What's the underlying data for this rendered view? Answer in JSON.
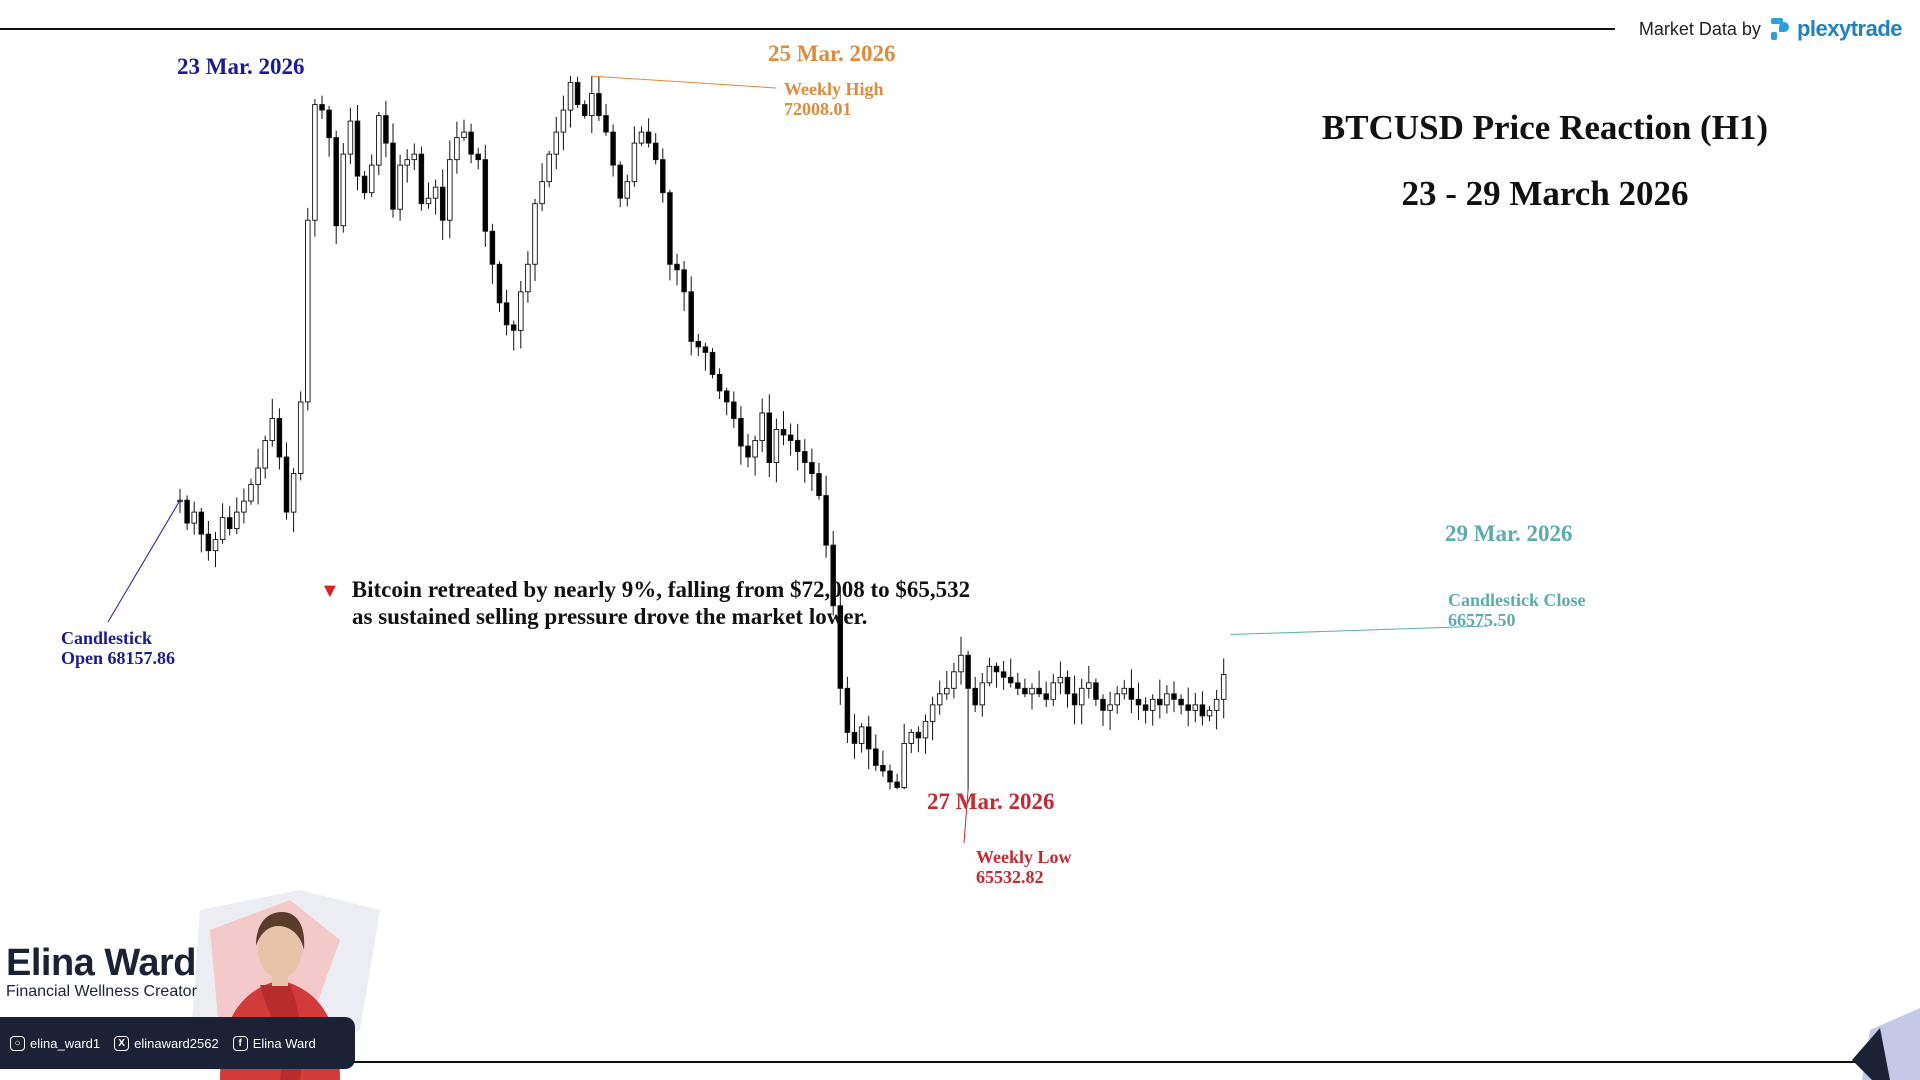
{
  "brand": {
    "prefix": "Market Data by",
    "name": "plexytrade",
    "logo_icon": "plexytrade-logo-icon",
    "color": "#1f82c4"
  },
  "title": {
    "line1": "BTCUSD Price Reaction (H1)",
    "line2": "23 - 29 March 2026"
  },
  "note": {
    "icon": "down-triangle-icon",
    "color": "#e02020",
    "line1": "Bitcoin retreated by nearly 9%, falling from $72,008 to $65,532",
    "line2": "as sustained selling pressure drove the market lower."
  },
  "annotations": {
    "open_date": "23 Mar. 2026",
    "open_label": "Candlestick",
    "open_value": "Open 68157.86",
    "high_date": "25 Mar. 2026",
    "high_label": "Weekly High",
    "high_value": "72008.01",
    "low_date": "27 Mar. 2026",
    "low_label": "Weekly Low",
    "low_value": "65532.82",
    "close_date": "29 Mar. 2026",
    "close_label": "Candlestick Close",
    "close_value": "66575.50"
  },
  "colors": {
    "open": "#1a1a9a",
    "high": "#e08a3a",
    "low": "#c8282e",
    "close": "#5aaeaa",
    "bull": "#ffffff",
    "bear": "#000000"
  },
  "creator": {
    "name": "Elina Ward",
    "subtitle": "Financial Wellness Creator",
    "socials": [
      {
        "icon": "instagram-icon",
        "handle": "elina_ward1"
      },
      {
        "icon": "x-icon",
        "handle": "elinaward2562"
      },
      {
        "icon": "facebook-icon",
        "handle": "Elina Ward"
      }
    ]
  },
  "chart_data": {
    "type": "candlestick",
    "title": "BTCUSD Price Reaction (H1)",
    "subtitle": "23 - 29 March 2026",
    "open": 68157.86,
    "close": 66575.5,
    "weekly_high": 72008.01,
    "weekly_low": 65532.82,
    "ylim": [
      65300,
      72200
    ],
    "key_points": [
      {
        "label": "Candlestick Open",
        "date": "23 Mar. 2026",
        "index": 0,
        "value": 68157.86
      },
      {
        "label": "Weekly High",
        "date": "25 Mar. 2026",
        "index": 58,
        "value": 72008.01
      },
      {
        "label": "Weekly Low",
        "date": "27 Mar. 2026",
        "index": 111,
        "value": 65532.82
      },
      {
        "label": "Candlestick Close",
        "date": "29 Mar. 2026",
        "index": 148,
        "value": 66575.5
      }
    ],
    "close_series": [
      68157.86,
      67950,
      68050,
      67850,
      67700,
      67800,
      68000,
      67900,
      68050,
      68150,
      68300,
      68450,
      68700,
      68900,
      68550,
      68050,
      68400,
      69050,
      70700,
      71750,
      71700,
      71450,
      70650,
      71300,
      71600,
      71100,
      70950,
      71200,
      71650,
      71400,
      70800,
      71200,
      71250,
      71300,
      70850,
      70900,
      71000,
      70700,
      71250,
      71450,
      71500,
      71300,
      71250,
      70600,
      70300,
      69950,
      69750,
      69700,
      70050,
      70300,
      70850,
      71050,
      71300,
      71500,
      71700,
      71950,
      71750,
      71650,
      71850,
      71650,
      71500,
      71200,
      70900,
      71050,
      71400,
      71500,
      71400,
      71250,
      70950,
      70300,
      70250,
      70050,
      69600,
      69550,
      69500,
      69300,
      69150,
      69050,
      68900,
      68650,
      68550,
      68700,
      68950,
      68500,
      68800,
      68750,
      68700,
      68600,
      68500,
      68400,
      68200,
      67750,
      67200,
      66450,
      66050,
      65950,
      66100,
      65900,
      65750,
      65700,
      65600,
      65550,
      65950,
      66050,
      66000,
      66150,
      66300,
      66400,
      66450,
      66600,
      66750,
      66450,
      66300,
      66500,
      66650,
      66600,
      66550,
      66500,
      66450,
      66400,
      66450,
      66400,
      66350,
      66500,
      66550,
      66400,
      66300,
      66450,
      66500,
      66350,
      66250,
      66300,
      66400,
      66450,
      66350,
      66300,
      66250,
      66350,
      66300,
      66400,
      66350,
      66300,
      66250,
      66300,
      66200,
      66250,
      66350,
      66575.5
    ]
  }
}
